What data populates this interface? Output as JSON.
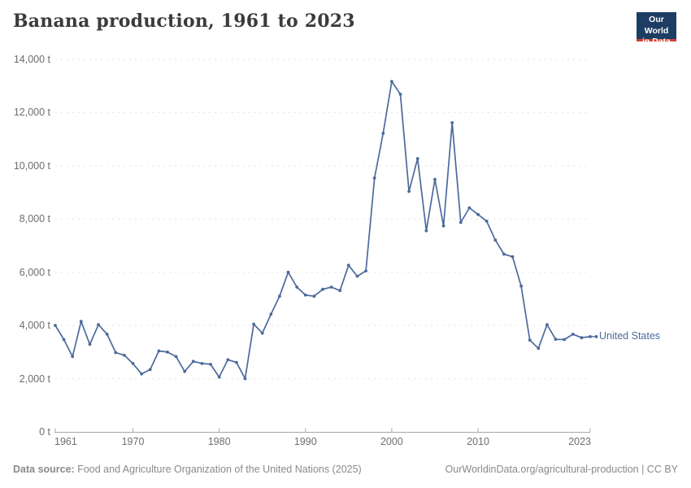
{
  "header": {
    "title": "Banana production, 1961 to 2023",
    "logo": {
      "line1": "Our World",
      "line2": "in Data"
    }
  },
  "end_label": "United States",
  "footer": {
    "source_label": "Data source:",
    "source_text": " Food and Agriculture Organization of the United Nations (2025)",
    "right_text": "OurWorldinData.org/agricultural-production | CC BY"
  },
  "colors": {
    "series": "#4C6A9C",
    "grid": "#e2e2e2",
    "axis": "#a8a8a8",
    "title": "#3b3b3b",
    "tick_text": "#6e6e6e",
    "footer_text": "#8a8a8a",
    "logo_bg": "#1d3d63",
    "logo_stripe": "#cf3e32"
  },
  "chart_data": {
    "type": "line",
    "title": "Banana production, 1961 to 2023",
    "xlabel": "",
    "ylabel": "",
    "unit": "t",
    "xlim": [
      1961,
      2023
    ],
    "ylim": [
      0,
      14000
    ],
    "grid": "horizontal-dashed",
    "legend_position": "end-of-line",
    "yticks": [
      {
        "v": 0,
        "label": "0 t"
      },
      {
        "v": 2000,
        "label": "2,000 t"
      },
      {
        "v": 4000,
        "label": "4,000 t"
      },
      {
        "v": 6000,
        "label": "6,000 t"
      },
      {
        "v": 8000,
        "label": "8,000 t"
      },
      {
        "v": 10000,
        "label": "10,000 t"
      },
      {
        "v": 12000,
        "label": "12,000 t"
      },
      {
        "v": 14000,
        "label": "14,000 t"
      }
    ],
    "xticks": [
      {
        "v": 1961,
        "label": "1961"
      },
      {
        "v": 1970,
        "label": "1970"
      },
      {
        "v": 1980,
        "label": "1980"
      },
      {
        "v": 1990,
        "label": "1990"
      },
      {
        "v": 2000,
        "label": "2000"
      },
      {
        "v": 2010,
        "label": "2010"
      },
      {
        "v": 2023,
        "label": "2023"
      }
    ],
    "series": [
      {
        "name": "United States",
        "color": "#4C6A9C",
        "x": [
          1961,
          1962,
          1963,
          1964,
          1965,
          1966,
          1967,
          1968,
          1969,
          1970,
          1971,
          1972,
          1973,
          1974,
          1975,
          1976,
          1977,
          1978,
          1979,
          1980,
          1981,
          1982,
          1983,
          1984,
          1985,
          1986,
          1987,
          1988,
          1989,
          1990,
          1991,
          1992,
          1993,
          1994,
          1995,
          1996,
          1997,
          1998,
          1999,
          2000,
          2001,
          2002,
          2003,
          2004,
          2005,
          2006,
          2007,
          2008,
          2009,
          2010,
          2011,
          2012,
          2013,
          2014,
          2015,
          2016,
          2017,
          2018,
          2019,
          2020,
          2021,
          2022,
          2023
        ],
        "values": [
          4000,
          3470,
          2830,
          4150,
          3290,
          4030,
          3670,
          2980,
          2880,
          2570,
          2180,
          2340,
          3040,
          3000,
          2830,
          2270,
          2650,
          2570,
          2540,
          2060,
          2710,
          2610,
          2000,
          4050,
          3710,
          4420,
          5100,
          6000,
          5440,
          5140,
          5100,
          5360,
          5440,
          5310,
          6260,
          5850,
          6050,
          9540,
          11220,
          13170,
          12690,
          9040,
          10270,
          7560,
          9490,
          7740,
          11620,
          7870,
          8420,
          8170,
          7920,
          7210,
          6680,
          6580,
          5480,
          3450,
          3140,
          4030,
          3480,
          3470,
          3670,
          3540,
          3580
        ]
      }
    ]
  }
}
